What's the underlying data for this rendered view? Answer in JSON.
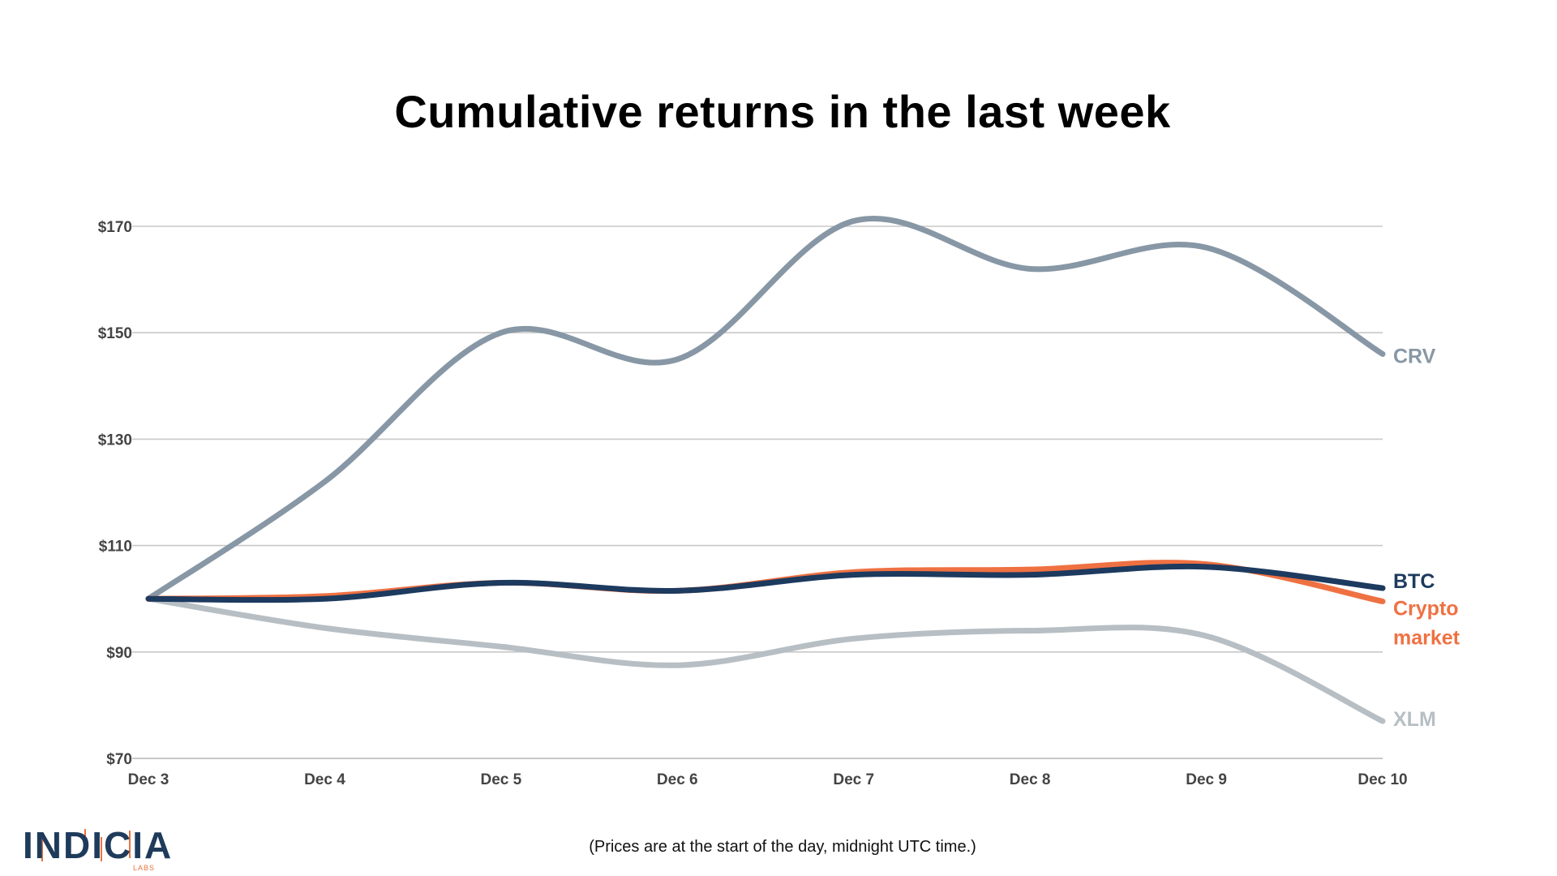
{
  "title": "Cumulative returns in the last week",
  "footnote": "(Prices are at the start of the day, midnight UTC time.)",
  "logo": {
    "name": "INDICIA",
    "subtitle": "LABS"
  },
  "colors": {
    "crv": "#8797a5",
    "btc": "#1d3a5f",
    "crypto_market": "#ef7142",
    "xlm": "#b7bfc4",
    "grid": "#c8c8c8",
    "axis_text": "#444444"
  },
  "chart_data": {
    "type": "line",
    "title": "Cumulative returns in the last week",
    "xlabel": "",
    "ylabel": "",
    "categories": [
      "Dec 3",
      "Dec 4",
      "Dec 5",
      "Dec 6",
      "Dec 7",
      "Dec 8",
      "Dec 9",
      "Dec 10"
    ],
    "ylim": [
      70,
      170
    ],
    "yticks": [
      70,
      90,
      110,
      130,
      150,
      170
    ],
    "ytick_labels": [
      "$70",
      "$90",
      "$110",
      "$130",
      "$150",
      "$170"
    ],
    "grid": true,
    "legend": "direct labels at right end of lines",
    "series": [
      {
        "name": "CRV",
        "color": "#8797a5",
        "values": [
          100,
          122,
          150,
          145,
          171,
          162,
          166,
          146
        ]
      },
      {
        "name": "Crypto market",
        "color": "#ef7142",
        "values": [
          100,
          100.5,
          103,
          101.5,
          105,
          105.5,
          106.5,
          99.5
        ]
      },
      {
        "name": "BTC",
        "color": "#1d3a5f",
        "values": [
          100,
          100,
          103,
          101.5,
          104.5,
          104.5,
          106,
          102
        ]
      },
      {
        "name": "XLM",
        "color": "#b7bfc4",
        "values": [
          100,
          94.5,
          91,
          87.5,
          92.5,
          94,
          93,
          77
        ]
      }
    ],
    "series_labels": [
      "CRV",
      "BTC",
      "Crypto",
      "market",
      "XLM"
    ]
  }
}
